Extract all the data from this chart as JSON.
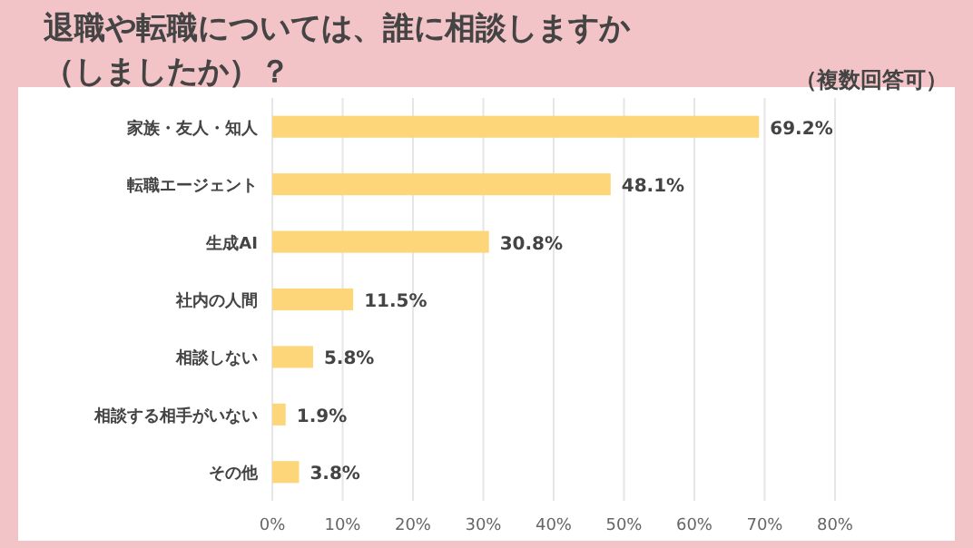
{
  "chart_data": {
    "type": "bar",
    "orientation": "horizontal",
    "title": "退職や転職については、誰に相談しますか（しましたか）？",
    "subtitle": "（複数回答可）",
    "categories": [
      "家族・友人・知人",
      "転職エージェント",
      "生成AI",
      "社内の人間",
      "相談しない",
      "相談する相手がいない",
      "その他"
    ],
    "values": [
      69.2,
      48.1,
      30.8,
      11.5,
      5.8,
      1.9,
      3.8
    ],
    "value_labels": [
      "69.2%",
      "48.1%",
      "30.8%",
      "11.5%",
      "5.8%",
      "1.9%",
      "3.8%"
    ],
    "color": "#fcd679",
    "xlim": [
      0,
      80
    ],
    "xticks": [
      {
        "value": 0,
        "label": "0%"
      },
      {
        "value": 10,
        "label": "10%"
      },
      {
        "value": 20,
        "label": "20%"
      },
      {
        "value": 30,
        "label": "30%"
      },
      {
        "value": 40,
        "label": "40%"
      },
      {
        "value": 50,
        "label": "50%"
      },
      {
        "value": 60,
        "label": "60%"
      },
      {
        "value": 70,
        "label": "70%"
      },
      {
        "value": 80,
        "label": "80%"
      }
    ],
    "grid": "x"
  }
}
